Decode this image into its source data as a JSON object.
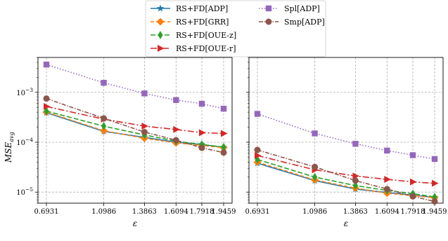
{
  "legend": {
    "items": [
      {
        "key": "adp",
        "label": "RS+FD[ADP]"
      },
      {
        "key": "grr",
        "label": "RS+FD[GRR]"
      },
      {
        "key": "ouez",
        "label": "RS+FD[OUE-z]"
      },
      {
        "key": "ouer",
        "label": "RS+FD[OUE-r]"
      },
      {
        "key": "spl",
        "label": "Spl[ADP]"
      },
      {
        "key": "smp",
        "label": "Smp[ADP]"
      }
    ]
  },
  "colors": {
    "adp": "#1f77b4",
    "grr": "#ff7f0e",
    "ouez": "#2ca02c",
    "ouer": "#d62728",
    "spl": "#9467bd",
    "smp": "#8c564b"
  },
  "chart_data": [
    {
      "type": "line",
      "xlabel": "ε",
      "ylabel": "MSE_avg",
      "yscale": "log",
      "ylim": [
        6e-06,
        0.005
      ],
      "grid": true,
      "x": [
        0.6931,
        1.0986,
        1.3863,
        1.6094,
        1.7918,
        1.9459
      ],
      "x_tick_labels": [
        "0.6931",
        "1.0986",
        "1.3863",
        "1.6094",
        "1.7918",
        "1.9459"
      ],
      "y_tick_labels": [
        "10^-3",
        "10^-4",
        "10^-5"
      ],
      "series": [
        {
          "key": "adp",
          "name": "RS+FD[ADP]",
          "values": [
            0.00039,
            0.000165,
            0.000125,
            0.0001,
            9e-05,
            7.9e-05
          ]
        },
        {
          "key": "grr",
          "name": "RS+FD[GRR]",
          "values": [
            0.0004,
            0.00017,
            0.00012,
            9.7e-05,
            8.6e-05,
            7.8e-05
          ]
        },
        {
          "key": "ouez",
          "name": "RS+FD[OUE-z]",
          "values": [
            0.00042,
            0.00021,
            0.00014,
            0.000105,
            9e-05,
            8e-05
          ]
        },
        {
          "key": "ouer",
          "name": "RS+FD[OUE-r]",
          "values": [
            0.00052,
            0.00029,
            0.00021,
            0.00018,
            0.000155,
            0.00015
          ]
        },
        {
          "key": "spl",
          "name": "Spl[ADP]",
          "values": [
            0.0036,
            0.00155,
            0.00095,
            0.0007,
            0.00059,
            0.00047
          ]
        },
        {
          "key": "smp",
          "name": "Smp[ADP]",
          "values": [
            0.00075,
            0.0003,
            0.00016,
            0.00011,
            7.7e-05,
            6.2e-05
          ]
        }
      ]
    },
    {
      "type": "line",
      "xlabel": "ε",
      "yscale": "log",
      "ylim": [
        6e-06,
        0.005
      ],
      "grid": true,
      "x": [
        0.6931,
        1.0986,
        1.3863,
        1.6094,
        1.7918,
        1.9459
      ],
      "x_tick_labels": [
        "0.6931",
        "1.0986",
        "1.3863",
        "1.6094",
        "1.7918",
        "1.9459"
      ],
      "series": [
        {
          "key": "adp",
          "name": "RS+FD[ADP]",
          "values": [
            3.8e-05,
            1.7e-05,
            1.15e-05,
            9.8e-06,
            8.7e-06,
            7.8e-06
          ]
        },
        {
          "key": "grr",
          "name": "RS+FD[GRR]",
          "values": [
            4e-05,
            1.75e-05,
            1.2e-05,
            9.5e-06,
            8.5e-06,
            7.7e-06
          ]
        },
        {
          "key": "ouez",
          "name": "RS+FD[OUE-z]",
          "values": [
            4.5e-05,
            2e-05,
            1.35e-05,
            1.08e-05,
            9.3e-06,
            8e-06
          ]
        },
        {
          "key": "ouer",
          "name": "RS+FD[OUE-r]",
          "values": [
            5.4e-05,
            2.8e-05,
            2.1e-05,
            1.8e-05,
            1.6e-05,
            1.5e-05
          ]
        },
        {
          "key": "spl",
          "name": "Spl[ADP]",
          "values": [
            0.00037,
            0.00015,
            9.3e-05,
            6.8e-05,
            5.5e-05,
            4.6e-05
          ]
        },
        {
          "key": "smp",
          "name": "Smp[ADP]",
          "values": [
            7e-05,
            3.2e-05,
            1.7e-05,
            1.15e-05,
            8.2e-06,
            6.5e-06
          ]
        }
      ]
    }
  ]
}
